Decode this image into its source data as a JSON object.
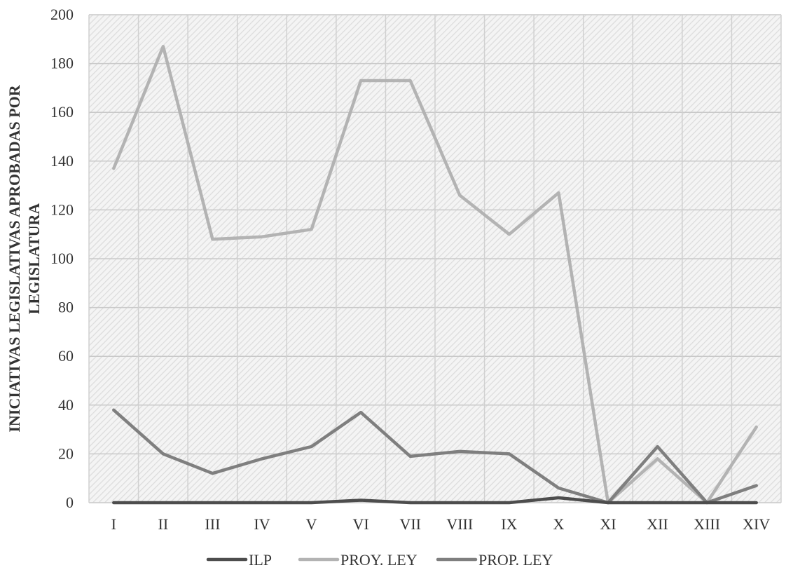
{
  "chart_data": {
    "type": "line",
    "categories": [
      "I",
      "II",
      "III",
      "IV",
      "V",
      "VI",
      "VII",
      "VIII",
      "IX",
      "X",
      "XI",
      "XII",
      "XIII",
      "XIV"
    ],
    "series": [
      {
        "name": "ILP",
        "color": "#4d4d4d",
        "values": [
          0,
          0,
          0,
          0,
          0,
          1,
          0,
          0,
          0,
          2,
          0,
          0,
          0,
          0
        ]
      },
      {
        "name": "PROY. LEY",
        "color": "#b3b3b3",
        "values": [
          137,
          187,
          108,
          109,
          112,
          173,
          173,
          126,
          110,
          127,
          0,
          18,
          0,
          31
        ]
      },
      {
        "name": "PROP. LEY",
        "color": "#7f7f7f",
        "values": [
          38,
          20,
          12,
          18,
          23,
          37,
          19,
          21,
          20,
          6,
          0,
          23,
          0,
          7
        ]
      }
    ],
    "title": "",
    "xlabel": "",
    "ylabel_lines": [
      "INICIATIVAS LEGISLATIVAS APROBADAS POR",
      "LEGISLATURA"
    ],
    "ylim": [
      0,
      200
    ],
    "yticks": [
      "0",
      "20",
      "40",
      "60",
      "80",
      "100",
      "120",
      "140",
      "160",
      "180",
      "200"
    ],
    "grid": true,
    "legend_position": "bottom"
  }
}
